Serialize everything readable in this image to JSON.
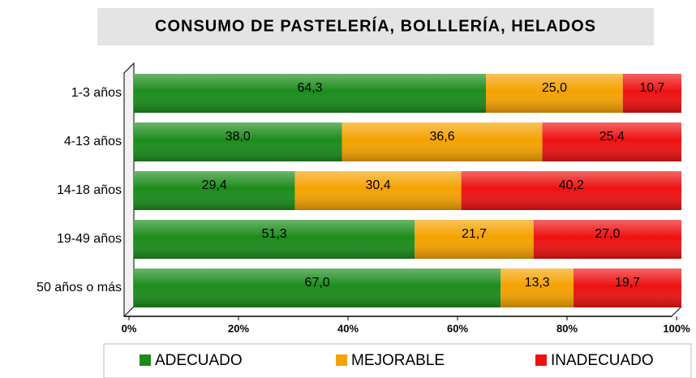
{
  "chart_data": {
    "type": "stacked_bar_horizontal",
    "title": "CONSUMO DE PASTELERÍA, BOLLLERÍA, HELADOS",
    "categories": [
      "1-3 años",
      "4-13 años",
      "14-18 años",
      "19-49 años",
      "50 años o más"
    ],
    "series": [
      {
        "name": "ADECUADO",
        "color": "#1b8c1b",
        "values": [
          64.3,
          38.0,
          29.4,
          51.3,
          67.0
        ],
        "value_labels": [
          "64,3",
          "38,0",
          "29,4",
          "51,3",
          "67,0"
        ]
      },
      {
        "name": "MEJORABLE",
        "color": "#f5a200",
        "values": [
          25.0,
          36.6,
          30.4,
          21.7,
          13.3
        ],
        "value_labels": [
          "25,0",
          "36,6",
          "30,4",
          "21,7",
          "13,3"
        ]
      },
      {
        "name": "INADECUADO",
        "color": "#ee1111",
        "values": [
          10.7,
          25.4,
          40.2,
          27.0,
          19.7
        ],
        "value_labels": [
          "10,7",
          "25,4",
          "40,2",
          "27,0",
          "19,7"
        ]
      }
    ],
    "xlim": [
      0,
      100
    ],
    "xticks": [
      {
        "value": 0,
        "label": "0%"
      },
      {
        "value": 20,
        "label": "20%"
      },
      {
        "value": 40,
        "label": "40%"
      },
      {
        "value": 60,
        "label": "60%"
      },
      {
        "value": 80,
        "label": "80%"
      },
      {
        "value": 100,
        "label": "100%"
      }
    ],
    "grid": false,
    "legend": "bottom"
  }
}
